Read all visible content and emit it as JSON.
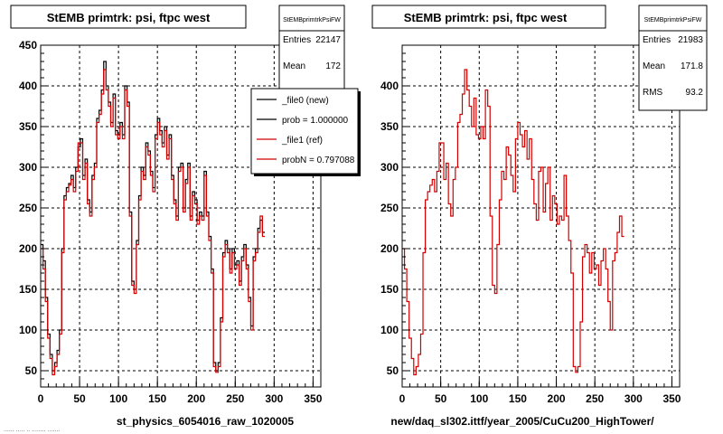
{
  "bottom_left_text": "...... ..... .. ........ .......",
  "chart_data": [
    {
      "type": "line",
      "title": "StEMB primtrk: psi, ftpc west",
      "xlabel": "st_physics_6054016_raw_1020005",
      "ylabel": "",
      "xlim": [
        0,
        360
      ],
      "ylim": [
        30,
        450
      ],
      "xticks": [
        0,
        50,
        100,
        150,
        200,
        250,
        300,
        350
      ],
      "yticks": [
        50,
        100,
        150,
        200,
        250,
        300,
        350,
        400,
        450
      ],
      "grid": true,
      "stats": {
        "header": "StEMBprimtrkPsiFW",
        "rows": [
          {
            "label": "Entries",
            "value": "22147"
          },
          {
            "label": "Mean",
            "value": "172"
          }
        ]
      },
      "legend": {
        "placement": "top-right",
        "entries": [
          {
            "label": "_file0 (new)",
            "color": "#000000"
          },
          {
            "label": "prob = 1.000000",
            "color": "#000000"
          },
          {
            "label": "_file1 (ref)",
            "color": "#d10000"
          },
          {
            "label": "probN = 0.797088",
            "color": "#d10000"
          }
        ]
      },
      "bin_width": 3,
      "series": [
        {
          "name": "_file0 (new)",
          "color": "#000000",
          "values": [
            205,
            185,
            140,
            95,
            70,
            50,
            60,
            75,
            100,
            200,
            265,
            275,
            280,
            290,
            275,
            300,
            325,
            335,
            290,
            310,
            260,
            245,
            290,
            305,
            360,
            370,
            395,
            430,
            400,
            380,
            355,
            390,
            345,
            340,
            355,
            340,
            400,
            380,
            245,
            160,
            150,
            210,
            265,
            300,
            290,
            330,
            320,
            295,
            275,
            340,
            360,
            345,
            330,
            350,
            315,
            340,
            290,
            260,
            240,
            300,
            305,
            250,
            285,
            305,
            240,
            270,
            260,
            235,
            245,
            240,
            295,
            245,
            215,
            175,
            60,
            50,
            60,
            115,
            195,
            210,
            200,
            175,
            200,
            180,
            185,
            160,
            190,
            205,
            180,
            140,
            105,
            190,
            200,
            225,
            235,
            220
          ]
        },
        {
          "name": "_file1 (ref)",
          "color": "#d10000",
          "values": [
            200,
            175,
            135,
            90,
            65,
            45,
            55,
            70,
            95,
            195,
            260,
            270,
            278,
            285,
            270,
            295,
            330,
            330,
            285,
            305,
            255,
            240,
            285,
            300,
            355,
            365,
            390,
            420,
            395,
            375,
            350,
            385,
            340,
            335,
            350,
            335,
            395,
            375,
            240,
            155,
            145,
            205,
            260,
            295,
            285,
            325,
            315,
            290,
            270,
            335,
            355,
            340,
            325,
            345,
            310,
            335,
            285,
            255,
            235,
            295,
            300,
            245,
            280,
            300,
            235,
            265,
            255,
            230,
            240,
            235,
            290,
            240,
            210,
            170,
            55,
            48,
            55,
            110,
            190,
            205,
            195,
            170,
            195,
            175,
            180,
            155,
            185,
            200,
            175,
            135,
            100,
            185,
            195,
            220,
            240,
            215
          ]
        }
      ]
    },
    {
      "type": "line",
      "title": "StEMB primtrk: psi, ftpc west",
      "xlabel": "new/daq_sl302.ittf/year_2005/CuCu200_HighTower/",
      "ylabel": "",
      "xlim": [
        0,
        360
      ],
      "ylim": [
        30,
        450
      ],
      "xticks": [
        0,
        50,
        100,
        150,
        200,
        250,
        300,
        350
      ],
      "yticks": [
        50,
        100,
        150,
        200,
        250,
        300,
        350,
        400
      ],
      "grid": true,
      "stats": {
        "header": "StEMBprimtrkPsiFW",
        "rows": [
          {
            "label": "Entries",
            "value": "21983"
          },
          {
            "label": "Mean",
            "value": "171.8"
          },
          {
            "label": "RMS",
            "value": "93.2"
          }
        ]
      },
      "bin_width": 3,
      "series": [
        {
          "name": "",
          "color": "#d10000",
          "values": [
            200,
            175,
            135,
            90,
            65,
            45,
            55,
            70,
            95,
            195,
            260,
            270,
            278,
            285,
            270,
            295,
            330,
            330,
            285,
            305,
            255,
            240,
            285,
            300,
            355,
            365,
            390,
            420,
            395,
            375,
            350,
            385,
            340,
            335,
            350,
            335,
            395,
            375,
            240,
            155,
            145,
            205,
            260,
            295,
            285,
            325,
            315,
            290,
            270,
            335,
            355,
            340,
            325,
            345,
            310,
            335,
            285,
            255,
            235,
            295,
            300,
            245,
            280,
            300,
            235,
            265,
            255,
            230,
            240,
            235,
            290,
            240,
            210,
            170,
            55,
            48,
            55,
            110,
            190,
            205,
            195,
            170,
            195,
            175,
            180,
            155,
            185,
            200,
            175,
            135,
            100,
            185,
            195,
            220,
            240,
            215
          ]
        }
      ]
    }
  ]
}
